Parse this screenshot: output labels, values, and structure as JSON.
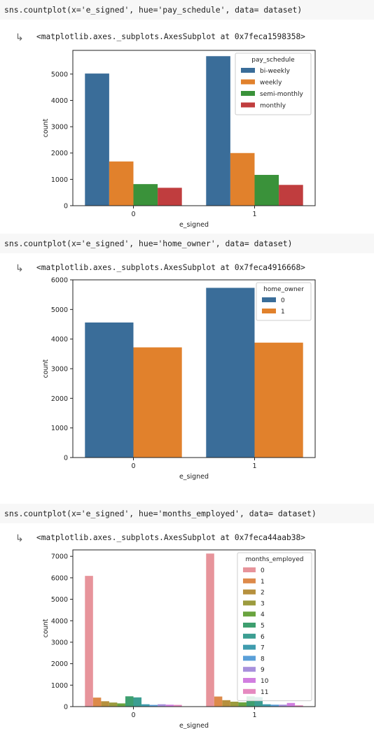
{
  "cells": [
    {
      "code": "sns.countplot(x='e_signed', hue='pay_schedule', data= dataset)",
      "output_icon": "output-arrow-icon",
      "output_text": "<matplotlib.axes._subplots.AxesSubplot at 0x7feca1598358>"
    },
    {
      "code": "sns.countplot(x='e_signed', hue='home_owner', data= dataset)",
      "output_icon": "output-arrow-icon",
      "output_text": "<matplotlib.axes._subplots.AxesSubplot at 0x7feca4916668>"
    },
    {
      "code": "sns.countplot(x='e_signed', hue='months_employed', data= dataset)",
      "output_icon": "output-arrow-icon",
      "output_text": "<matplotlib.axes._subplots.AxesSubplot at 0x7feca44aab38>"
    }
  ],
  "chart_data": [
    {
      "type": "bar",
      "xlabel": "e_signed",
      "ylabel": "count",
      "categories": [
        "0",
        "1"
      ],
      "ylim": [
        0,
        5900
      ],
      "yticks": [
        0,
        1000,
        2000,
        3000,
        4000,
        5000
      ],
      "legend_title": "pay_schedule",
      "legend_placement": "top-right",
      "grid": false,
      "series": [
        {
          "name": "bi-weekly",
          "color": "#3a6d99",
          "values": [
            5020,
            5680
          ]
        },
        {
          "name": "weekly",
          "color": "#e1812c",
          "values": [
            1680,
            2000
          ]
        },
        {
          "name": "semi-monthly",
          "color": "#3a923a",
          "values": [
            820,
            1170
          ]
        },
        {
          "name": "monthly",
          "color": "#c03d3e",
          "values": [
            680,
            790
          ]
        }
      ]
    },
    {
      "type": "bar",
      "xlabel": "e_signed",
      "ylabel": "count",
      "categories": [
        "0",
        "1"
      ],
      "ylim": [
        0,
        6000
      ],
      "yticks": [
        0,
        1000,
        2000,
        3000,
        4000,
        5000,
        6000
      ],
      "legend_title": "home_owner",
      "legend_placement": "top-right",
      "grid": false,
      "series": [
        {
          "name": "0",
          "color": "#3a6d99",
          "values": [
            4560,
            5730
          ]
        },
        {
          "name": "1",
          "color": "#e1812c",
          "values": [
            3720,
            3880
          ]
        }
      ]
    },
    {
      "type": "bar",
      "xlabel": "e_signed",
      "ylabel": "count",
      "categories": [
        "0",
        "1"
      ],
      "ylim": [
        0,
        7300
      ],
      "yticks": [
        0,
        1000,
        2000,
        3000,
        4000,
        5000,
        6000,
        7000
      ],
      "legend_title": "months_employed",
      "legend_placement": "top-right",
      "grid": false,
      "series": [
        {
          "name": "0",
          "color": "#e7949b",
          "values": [
            6090,
            7130
          ]
        },
        {
          "name": "1",
          "color": "#dd8a4a",
          "values": [
            420,
            470
          ]
        },
        {
          "name": "2",
          "color": "#b6903e",
          "values": [
            250,
            300
          ]
        },
        {
          "name": "3",
          "color": "#9c9b3e",
          "values": [
            190,
            230
          ]
        },
        {
          "name": "4",
          "color": "#6aa43f",
          "values": [
            150,
            200
          ]
        },
        {
          "name": "5",
          "color": "#3e9f6f",
          "values": [
            480,
            480
          ]
        },
        {
          "name": "6",
          "color": "#3c9e92",
          "values": [
            430,
            440
          ]
        },
        {
          "name": "7",
          "color": "#3f9cae",
          "values": [
            110,
            110
          ]
        },
        {
          "name": "8",
          "color": "#5a9fd8",
          "values": [
            80,
            90
          ]
        },
        {
          "name": "9",
          "color": "#a890dc",
          "values": [
            110,
            90
          ]
        },
        {
          "name": "10",
          "color": "#d17ee0",
          "values": [
            90,
            170
          ]
        },
        {
          "name": "11",
          "color": "#e58ac0",
          "values": [
            80,
            60
          ]
        }
      ]
    }
  ]
}
